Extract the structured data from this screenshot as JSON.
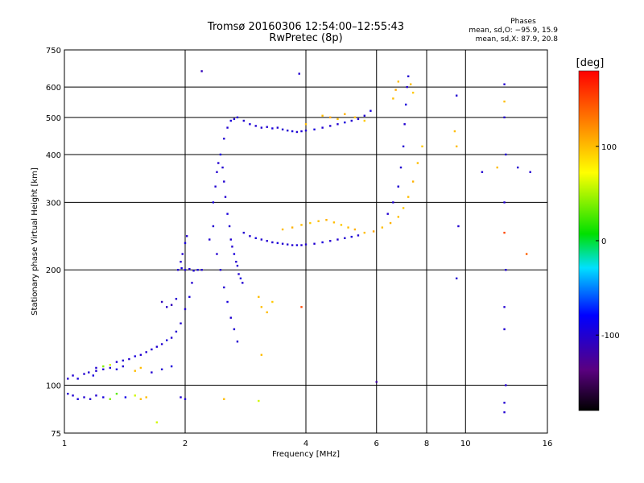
{
  "chart_data": {
    "type": "scatter",
    "title": "Tromsø 20160306 12:54:00–12:55:43",
    "subtitle": "RwPretec (8p)",
    "info": {
      "heading": "Phases",
      "line1": "mean, sd,O: −95.9, 15.9",
      "line2": "mean, sd,X:  87.9, 20.8"
    },
    "xlabel": "Frequency [MHz]",
    "ylabel": "Stationary phase Virtual Height [km]",
    "x_scale": "log",
    "y_scale": "log",
    "xlim": [
      1,
      16
    ],
    "ylim": [
      75,
      750
    ],
    "x_ticks": [
      1,
      2,
      4,
      6,
      8,
      10,
      16
    ],
    "y_ticks": [
      75,
      100,
      200,
      300,
      400,
      500,
      600,
      750
    ],
    "grid": true,
    "colorbar": {
      "label": "[deg]",
      "range": [
        -180,
        180
      ],
      "ticks": [
        100,
        0,
        -100
      ],
      "colormap": "rainbow (black-purple-blue-cyan-green-yellow-orange-red)"
    },
    "series": [
      {
        "points": [
          [
            1.02,
            95,
            -100
          ],
          [
            1.05,
            94,
            -100
          ],
          [
            1.08,
            92,
            -95
          ],
          [
            1.12,
            93,
            -100
          ],
          [
            1.16,
            92,
            -100
          ],
          [
            1.2,
            94,
            -100
          ],
          [
            1.25,
            93,
            -95
          ],
          [
            1.3,
            92,
            40
          ],
          [
            1.35,
            95,
            30
          ],
          [
            1.42,
            93,
            -90
          ],
          [
            1.5,
            94,
            60
          ],
          [
            1.55,
            92,
            100
          ],
          [
            1.6,
            93,
            100
          ],
          [
            1.95,
            93,
            -100
          ],
          [
            2.0,
            92,
            -100
          ],
          [
            1.02,
            104,
            -100
          ],
          [
            1.05,
            106,
            -100
          ],
          [
            1.08,
            104,
            -95
          ],
          [
            1.12,
            107,
            -100
          ],
          [
            1.15,
            108,
            -100
          ],
          [
            1.18,
            106,
            -95
          ],
          [
            1.2,
            109,
            -100
          ],
          [
            1.25,
            112,
            40
          ],
          [
            1.3,
            113,
            60
          ],
          [
            1.35,
            115,
            -100
          ],
          [
            1.4,
            116,
            -100
          ],
          [
            1.45,
            117,
            -100
          ],
          [
            1.5,
            119,
            -95
          ],
          [
            1.55,
            120,
            -100
          ],
          [
            1.6,
            122,
            -100
          ],
          [
            1.65,
            124,
            -100
          ],
          [
            1.7,
            126,
            -100
          ],
          [
            1.75,
            128,
            -100
          ],
          [
            1.8,
            131,
            -95
          ],
          [
            1.85,
            133,
            -100
          ],
          [
            1.9,
            138,
            -100
          ],
          [
            1.95,
            145,
            -100
          ],
          [
            2.0,
            158,
            -100
          ],
          [
            2.05,
            170,
            -95
          ],
          [
            2.08,
            185,
            -100
          ],
          [
            1.2,
            111,
            -100
          ],
          [
            1.25,
            110,
            -100
          ],
          [
            1.3,
            111,
            -100
          ],
          [
            1.35,
            110,
            -95
          ],
          [
            1.4,
            112,
            -100
          ],
          [
            1.5,
            109,
            100
          ],
          [
            1.55,
            111,
            100
          ],
          [
            1.65,
            108,
            -100
          ],
          [
            1.75,
            110,
            -100
          ],
          [
            1.85,
            112,
            -95
          ],
          [
            1.92,
            200,
            -100
          ],
          [
            1.96,
            202,
            -95
          ],
          [
            2.0,
            200,
            -100
          ],
          [
            2.05,
            201,
            -100
          ],
          [
            2.1,
            199,
            -100
          ],
          [
            2.15,
            200,
            -95
          ],
          [
            2.2,
            200,
            -100
          ],
          [
            1.95,
            210,
            -100
          ],
          [
            1.97,
            220,
            -100
          ],
          [
            2.0,
            235,
            -95
          ],
          [
            2.02,
            245,
            -100
          ],
          [
            1.75,
            165,
            -110
          ],
          [
            1.8,
            160,
            -105
          ],
          [
            1.85,
            162,
            -110
          ],
          [
            1.9,
            168,
            -100
          ],
          [
            2.3,
            240,
            -100
          ],
          [
            2.35,
            260,
            -100
          ],
          [
            2.35,
            300,
            -95
          ],
          [
            2.38,
            330,
            -100
          ],
          [
            2.4,
            360,
            -100
          ],
          [
            2.42,
            380,
            -100
          ],
          [
            2.45,
            400,
            -95
          ],
          [
            2.48,
            370,
            -100
          ],
          [
            2.5,
            340,
            -100
          ],
          [
            2.52,
            310,
            -100
          ],
          [
            2.55,
            280,
            -95
          ],
          [
            2.58,
            260,
            -100
          ],
          [
            2.6,
            240,
            -100
          ],
          [
            2.62,
            230,
            -100
          ],
          [
            2.65,
            220,
            -95
          ],
          [
            2.68,
            210,
            -100
          ],
          [
            2.7,
            205,
            -100
          ],
          [
            2.72,
            195,
            -100
          ],
          [
            2.75,
            190,
            -95
          ],
          [
            2.78,
            185,
            -100
          ],
          [
            2.4,
            220,
            -100
          ],
          [
            2.45,
            200,
            -100
          ],
          [
            2.5,
            180,
            -100
          ],
          [
            2.55,
            165,
            -95
          ],
          [
            2.6,
            150,
            -100
          ],
          [
            2.65,
            140,
            -100
          ],
          [
            2.7,
            130,
            -100
          ],
          [
            2.5,
            440,
            -100
          ],
          [
            2.55,
            470,
            -100
          ],
          [
            2.6,
            490,
            -95
          ],
          [
            2.65,
            495,
            -100
          ],
          [
            2.7,
            500,
            -100
          ],
          [
            2.8,
            490,
            -100
          ],
          [
            2.9,
            480,
            -95
          ],
          [
            3.0,
            475,
            -100
          ],
          [
            3.1,
            470,
            -100
          ],
          [
            3.2,
            472,
            -100
          ],
          [
            3.3,
            468,
            -95
          ],
          [
            3.4,
            470,
            -100
          ],
          [
            3.5,
            465,
            -100
          ],
          [
            3.6,
            462,
            -100
          ],
          [
            3.7,
            460,
            -95
          ],
          [
            3.8,
            458,
            -100
          ],
          [
            3.9,
            460,
            -100
          ],
          [
            4.0,
            462,
            -100
          ],
          [
            4.2,
            465,
            -95
          ],
          [
            4.4,
            470,
            -100
          ],
          [
            4.6,
            475,
            -100
          ],
          [
            4.8,
            480,
            -100
          ],
          [
            5.0,
            485,
            -95
          ],
          [
            5.2,
            490,
            -100
          ],
          [
            5.4,
            495,
            -100
          ],
          [
            5.6,
            505,
            -100
          ],
          [
            5.8,
            520,
            -95
          ],
          [
            4.4,
            505,
            100
          ],
          [
            4.6,
            500,
            110
          ],
          [
            4.8,
            495,
            100
          ],
          [
            5.0,
            510,
            105
          ],
          [
            5.3,
            500,
            100
          ],
          [
            5.6,
            490,
            95
          ],
          [
            2.8,
            250,
            -100
          ],
          [
            2.9,
            245,
            -100
          ],
          [
            3.0,
            242,
            -95
          ],
          [
            3.1,
            240,
            -100
          ],
          [
            3.2,
            238,
            -100
          ],
          [
            3.3,
            236,
            -100
          ],
          [
            3.4,
            235,
            -95
          ],
          [
            3.5,
            234,
            -100
          ],
          [
            3.6,
            233,
            -100
          ],
          [
            3.7,
            232,
            -100
          ],
          [
            3.8,
            232,
            -95
          ],
          [
            3.9,
            232,
            -100
          ],
          [
            4.0,
            233,
            -100
          ],
          [
            4.2,
            234,
            -100
          ],
          [
            4.4,
            236,
            -95
          ],
          [
            4.6,
            238,
            -100
          ],
          [
            4.8,
            240,
            -100
          ],
          [
            5.0,
            242,
            -100
          ],
          [
            5.2,
            244,
            -95
          ],
          [
            5.4,
            246,
            -100
          ],
          [
            3.5,
            255,
            100
          ],
          [
            3.7,
            258,
            105
          ],
          [
            3.9,
            262,
            100
          ],
          [
            4.1,
            265,
            95
          ],
          [
            4.3,
            268,
            100
          ],
          [
            4.5,
            270,
            105
          ],
          [
            4.7,
            266,
            100
          ],
          [
            4.9,
            262,
            95
          ],
          [
            5.1,
            258,
            100
          ],
          [
            5.3,
            255,
            105
          ],
          [
            5.6,
            250,
            100
          ],
          [
            5.9,
            252,
            110
          ],
          [
            6.2,
            258,
            100
          ],
          [
            6.5,
            265,
            105
          ],
          [
            6.8,
            275,
            100
          ],
          [
            7.0,
            290,
            95
          ],
          [
            7.2,
            310,
            100
          ],
          [
            7.4,
            340,
            105
          ],
          [
            7.6,
            380,
            100
          ],
          [
            7.8,
            420,
            95
          ],
          [
            6.4,
            280,
            -100
          ],
          [
            6.6,
            300,
            -100
          ],
          [
            6.8,
            330,
            -95
          ],
          [
            6.9,
            370,
            -100
          ],
          [
            7.0,
            420,
            -100
          ],
          [
            7.05,
            480,
            -100
          ],
          [
            7.1,
            540,
            -95
          ],
          [
            7.15,
            600,
            -100
          ],
          [
            7.2,
            640,
            -100
          ],
          [
            6.6,
            560,
            100
          ],
          [
            6.7,
            590,
            110
          ],
          [
            6.8,
            620,
            100
          ],
          [
            7.3,
            610,
            100
          ],
          [
            7.4,
            580,
            95
          ],
          [
            9.5,
            570,
            -100
          ],
          [
            9.4,
            460,
            100
          ],
          [
            9.5,
            420,
            100
          ],
          [
            9.6,
            260,
            -100
          ],
          [
            9.5,
            190,
            -100
          ],
          [
            12.5,
            610,
            -100
          ],
          [
            12.5,
            550,
            100
          ],
          [
            12.5,
            500,
            -100
          ],
          [
            12.6,
            400,
            -100
          ],
          [
            12.5,
            300,
            -100
          ],
          [
            12.5,
            250,
            150
          ],
          [
            12.6,
            200,
            -100
          ],
          [
            12.5,
            160,
            -100
          ],
          [
            12.5,
            140,
            -100
          ],
          [
            12.6,
            100,
            -100
          ],
          [
            12.5,
            90,
            -100
          ],
          [
            12.5,
            85,
            -100
          ],
          [
            11.0,
            360,
            -100
          ],
          [
            12.0,
            370,
            100
          ],
          [
            13.5,
            370,
            -100
          ],
          [
            14.5,
            360,
            -100
          ],
          [
            14.2,
            220,
            140
          ],
          [
            6.0,
            102,
            -120
          ],
          [
            2.2,
            660,
            -110
          ],
          [
            3.85,
            650,
            -100
          ],
          [
            3.05,
            170,
            100
          ],
          [
            3.1,
            160,
            100
          ],
          [
            3.2,
            155,
            100
          ],
          [
            3.3,
            165,
            95
          ],
          [
            3.1,
            120,
            100
          ],
          [
            2.5,
            92,
            100
          ],
          [
            3.05,
            91,
            60
          ],
          [
            1.7,
            80,
            60
          ],
          [
            3.9,
            160,
            150
          ],
          [
            4.0,
            480,
            100
          ],
          [
            6.8,
            330,
            -100
          ]
        ]
      }
    ]
  }
}
